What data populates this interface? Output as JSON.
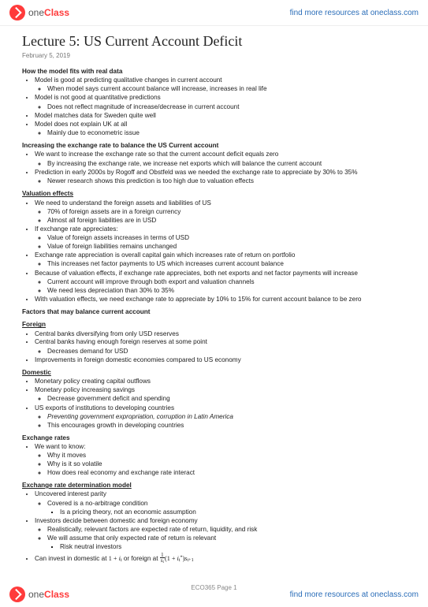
{
  "brand": {
    "name_a": "one",
    "name_b": "Class"
  },
  "search_text": "find more resources at oneclass.com",
  "title": "Lecture 5: US Current Account Deficit",
  "date": "February 5, 2019",
  "page_label": "ECO365 Page 1",
  "sections": [
    {
      "heading": "How the model fits with real data",
      "underline": false,
      "items": [
        {
          "t": "Model is good at predicting qualitative changes in current account",
          "sub": [
            {
              "t": "When model says current account balance will increase, increases in real life"
            }
          ]
        },
        {
          "t": "Model is not good at quantitative predictions",
          "sub": [
            {
              "t": "Does not reflect magnitude of increase/decrease in current account"
            }
          ]
        },
        {
          "t": "Model matches data for Sweden quite well"
        },
        {
          "t": "Model does not explain UK at all",
          "sub": [
            {
              "t": "Mainly due to econometric issue"
            }
          ]
        }
      ]
    },
    {
      "heading": "Increasing the exchange rate to balance the US Current account",
      "underline": false,
      "items": [
        {
          "t": "We want to increase the exchange rate so that the current account deficit equals zero",
          "sub": [
            {
              "t": "By increasing the exchange rate, we increase net exports which will balance the current account"
            }
          ]
        },
        {
          "t": "Prediction in early 2000s by Rogoff and Obstfeld was we needed the exchange rate to appreciate by 30% to 35%",
          "sub": [
            {
              "t": "Newer research shows this prediction is too high due to valuation effects"
            }
          ]
        }
      ]
    },
    {
      "heading": "Valuation effects",
      "underline": true,
      "items": [
        {
          "t": "We need to understand the foreign assets and liabilities of US",
          "sub": [
            {
              "t": "70% of foreign assets are in a foreign currency"
            },
            {
              "t": "Almost all foreign liabilities are in USD"
            }
          ]
        },
        {
          "t": "If exchange rate appreciates:",
          "sub": [
            {
              "t": "Value of foreign assets increases in terms of USD"
            },
            {
              "t": "Value of foreign liabilities remains unchanged"
            }
          ]
        },
        {
          "t": "Exchange rate appreciation is overall capital gain which increases rate of return on portfolio",
          "sub": [
            {
              "t": "This increases net factor payments to US which increases current account balance"
            }
          ]
        },
        {
          "t": "Because of valuation effects, if exchange rate appreciates, both net exports and net factor payments will increase",
          "sub": [
            {
              "t": "Current account will improve through both export and valuation channels"
            },
            {
              "t": "We need less depreciation than 30% to 35%"
            }
          ]
        },
        {
          "t": "With valuation effects, we need exchange rate to appreciate by 10% to 15% for current account balance to be zero"
        }
      ]
    },
    {
      "heading": "Factors that may balance current account",
      "underline": false,
      "items": []
    },
    {
      "heading": "Foreign",
      "underline": true,
      "items": [
        {
          "t": "Central banks diversifying from only USD reserves"
        },
        {
          "t": "Central banks having enough foreign reserves at some point",
          "sub": [
            {
              "t": "Decreases demand for USD"
            }
          ]
        },
        {
          "t": "Improvements in foreign domestic economies compared to US economy"
        }
      ]
    },
    {
      "heading": "Domestic",
      "underline": true,
      "items": [
        {
          "t": "Monetary policy creating capital outflows"
        },
        {
          "t": "Monetary policy increasing savings",
          "sub": [
            {
              "t": "Decrease government deficit and spending"
            }
          ]
        },
        {
          "t": "US exports of institutions to developing countries",
          "sub": [
            {
              "t": "Preventing government expropriation, corruption in Latin America",
              "italic": true
            },
            {
              "t": "This encourages growth in developing countries"
            }
          ]
        }
      ]
    },
    {
      "heading": "Exchange rates",
      "underline": false,
      "items": [
        {
          "t": "We want to know:",
          "sub": [
            {
              "t": "Why it moves"
            },
            {
              "t": "Why is it so volatile"
            },
            {
              "t": "How does real economy and exchange rate interact"
            }
          ]
        }
      ]
    },
    {
      "heading": "Exchange rate determination model",
      "underline": true,
      "items": [
        {
          "t": "Uncovered interest parity",
          "sub": [
            {
              "t": "Covered is a no-arbitrage condition",
              "sub": [
                {
                  "t": "Is a pricing theory, not an economic assumption"
                }
              ]
            }
          ]
        },
        {
          "t": "Investors decide between domestic and foreign economy",
          "sub": [
            {
              "t": "Realistically, relevant factors are expected rate of return, liquidity, and risk"
            },
            {
              "t": "We will assume that only expected rate of return is relevant",
              "sub": [
                {
                  "t": "Risk neutral investors"
                }
              ]
            }
          ]
        }
      ]
    }
  ],
  "last_bullet_prefix": "Can invest in domestic at ",
  "last_bullet_mid": " or foreign at "
}
